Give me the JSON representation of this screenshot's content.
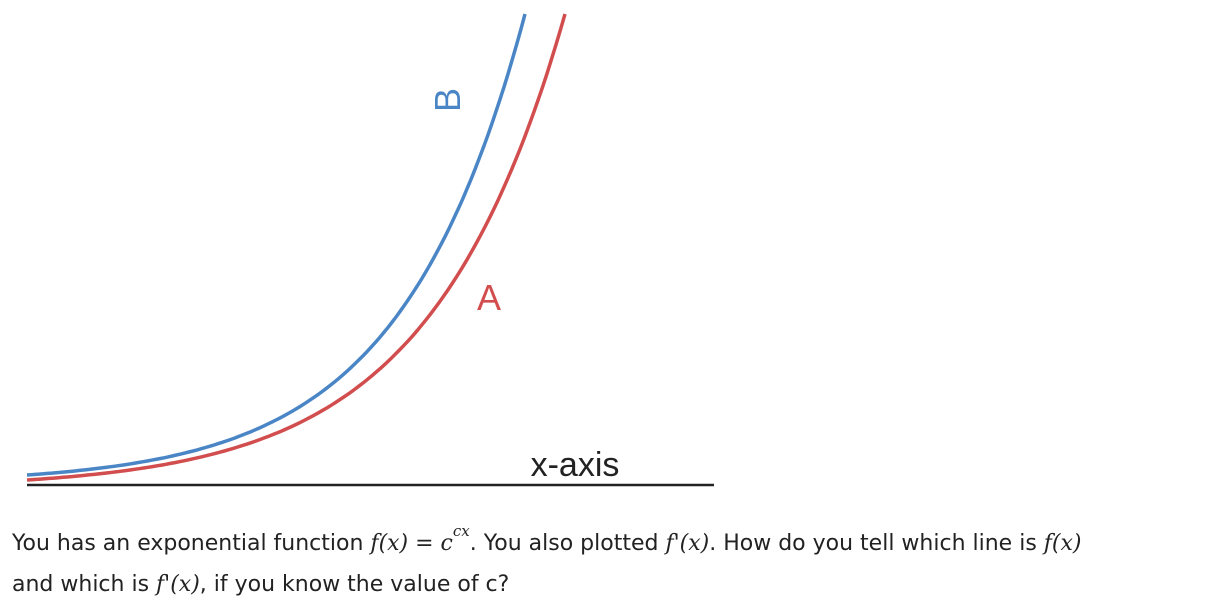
{
  "chart_data": {
    "type": "line",
    "title": "",
    "xlabel": "x-axis",
    "ylabel": "",
    "series": [
      {
        "name": "B",
        "color": "#4a86c6"
      },
      {
        "name": "A",
        "color": "#d24d4d"
      }
    ],
    "grid": false,
    "legend": "inline labels near curves"
  },
  "question": {
    "line1": [
      {
        "t": "You has an exponential function "
      },
      {
        "m": "f(x) = c"
      },
      {
        "sup": "cx"
      },
      {
        "t": ". You also plotted "
      },
      {
        "m": "f'(x)"
      },
      {
        "t": ". How do you tell which line is "
      },
      {
        "m": "f(x)"
      }
    ],
    "line2": [
      {
        "t": "and which is "
      },
      {
        "m": "f'(x)"
      },
      {
        "t": ", if you know the value of c?"
      }
    ]
  }
}
